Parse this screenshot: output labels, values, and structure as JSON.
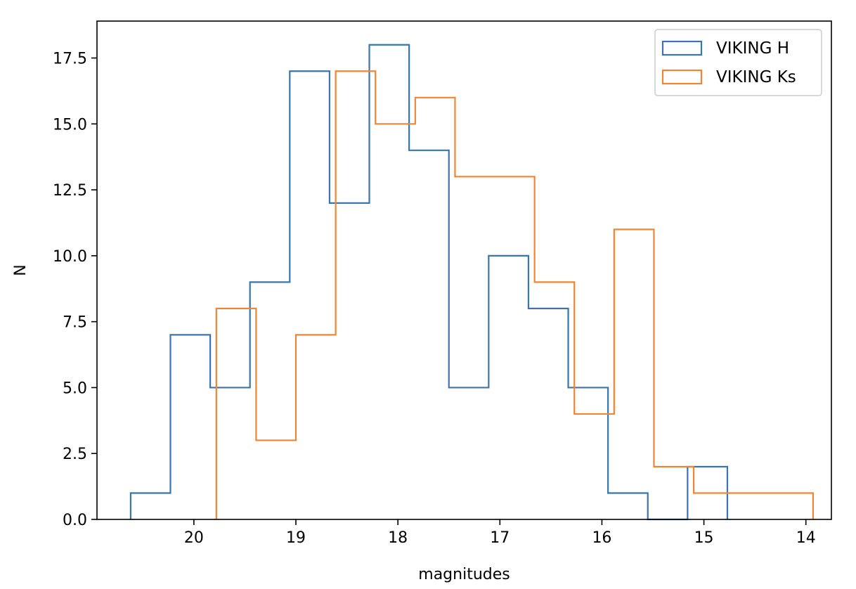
{
  "chart_data": {
    "type": "histogram-step",
    "title": "",
    "xlabel": "magnitudes",
    "ylabel": "N",
    "x_inverted": true,
    "xlim": [
      20.95,
      13.75
    ],
    "ylim": [
      0,
      18.9
    ],
    "xticks": [
      20,
      19,
      18,
      17,
      16,
      15,
      14
    ],
    "xtick_labels": [
      "20",
      "19",
      "18",
      "17",
      "16",
      "15",
      "14"
    ],
    "yticks": [
      0,
      2.5,
      5,
      7.5,
      10,
      12.5,
      15,
      17.5
    ],
    "ytick_labels": [
      "0.0",
      "2.5",
      "5.0",
      "7.5",
      "10.0",
      "12.5",
      "15.0",
      "17.5"
    ],
    "grid": false,
    "legend_position": "upper-right",
    "series": [
      {
        "name": "VIKING H",
        "color": "#3b75af",
        "bin_edges": [
          20.62,
          20.23,
          19.84,
          19.45,
          19.06,
          18.67,
          18.28,
          17.89,
          17.5,
          17.11,
          16.72,
          16.33,
          15.94,
          15.55,
          15.16,
          14.77
        ],
        "counts": [
          1,
          7,
          5,
          9,
          17,
          12,
          18,
          14,
          5,
          10,
          8,
          5,
          1,
          0,
          2
        ]
      },
      {
        "name": "VIKING Ks",
        "color": "#ef8636",
        "bin_edges": [
          19.78,
          19.39,
          19.0,
          18.61,
          18.22,
          17.83,
          17.44,
          17.05,
          16.66,
          16.27,
          15.88,
          15.49,
          15.1,
          14.71,
          14.32,
          13.93
        ],
        "counts": [
          8,
          3,
          7,
          17,
          15,
          16,
          13,
          13,
          9,
          4,
          11,
          2,
          1,
          1,
          1
        ]
      }
    ]
  }
}
